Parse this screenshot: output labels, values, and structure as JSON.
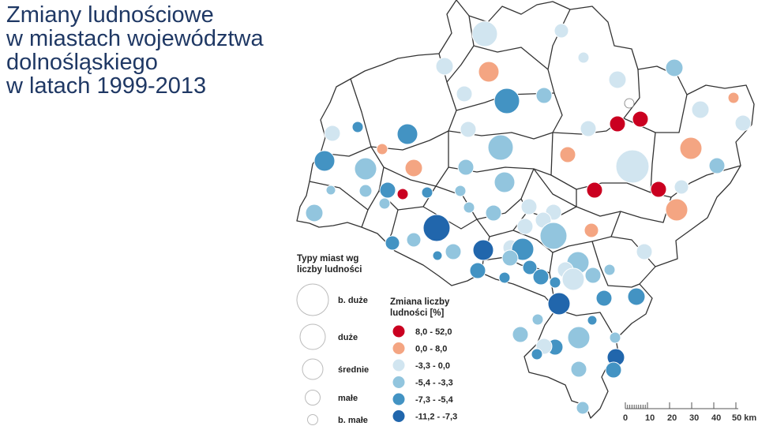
{
  "title_lines": [
    "Zmiany ludnościowe",
    "w miastach województwa",
    "dolnośląskiego",
    "w latach 1999-2013"
  ],
  "legend_size": {
    "title_lines": [
      "Typy miast wg",
      "liczby ludności"
    ],
    "items": [
      "b. duże",
      "duże",
      "średnie",
      "małe",
      "b. małe"
    ]
  },
  "legend_change": {
    "title_lines": [
      "Zmiana liczby",
      "ludności [%]"
    ],
    "items": [
      {
        "label": "8,0 - 52,0",
        "color": "#ca0020"
      },
      {
        "label": "0,0 - 8,0",
        "color": "#f4a582"
      },
      {
        "label": "-3,3 - 0,0",
        "color": "#d1e5f0"
      },
      {
        "label": "-5,4 - -3,3",
        "color": "#92c5de"
      },
      {
        "label": "-7,3 - -5,4",
        "color": "#4393c3"
      },
      {
        "label": "-11,2 - -7,3",
        "color": "#2166ac"
      }
    ]
  },
  "scale_bar": {
    "labels": [
      "0",
      "10",
      "20",
      "30",
      "40",
      "50 km"
    ]
  },
  "colors": {
    "title": "#1f3864",
    "border": "#333333",
    "class1": "#ca0020",
    "class2": "#f4a582",
    "class3": "#d1e5f0",
    "class4": "#92c5de",
    "class5": "#4393c3",
    "class6": "#2166ac",
    "empty": "#ffffff"
  }
}
